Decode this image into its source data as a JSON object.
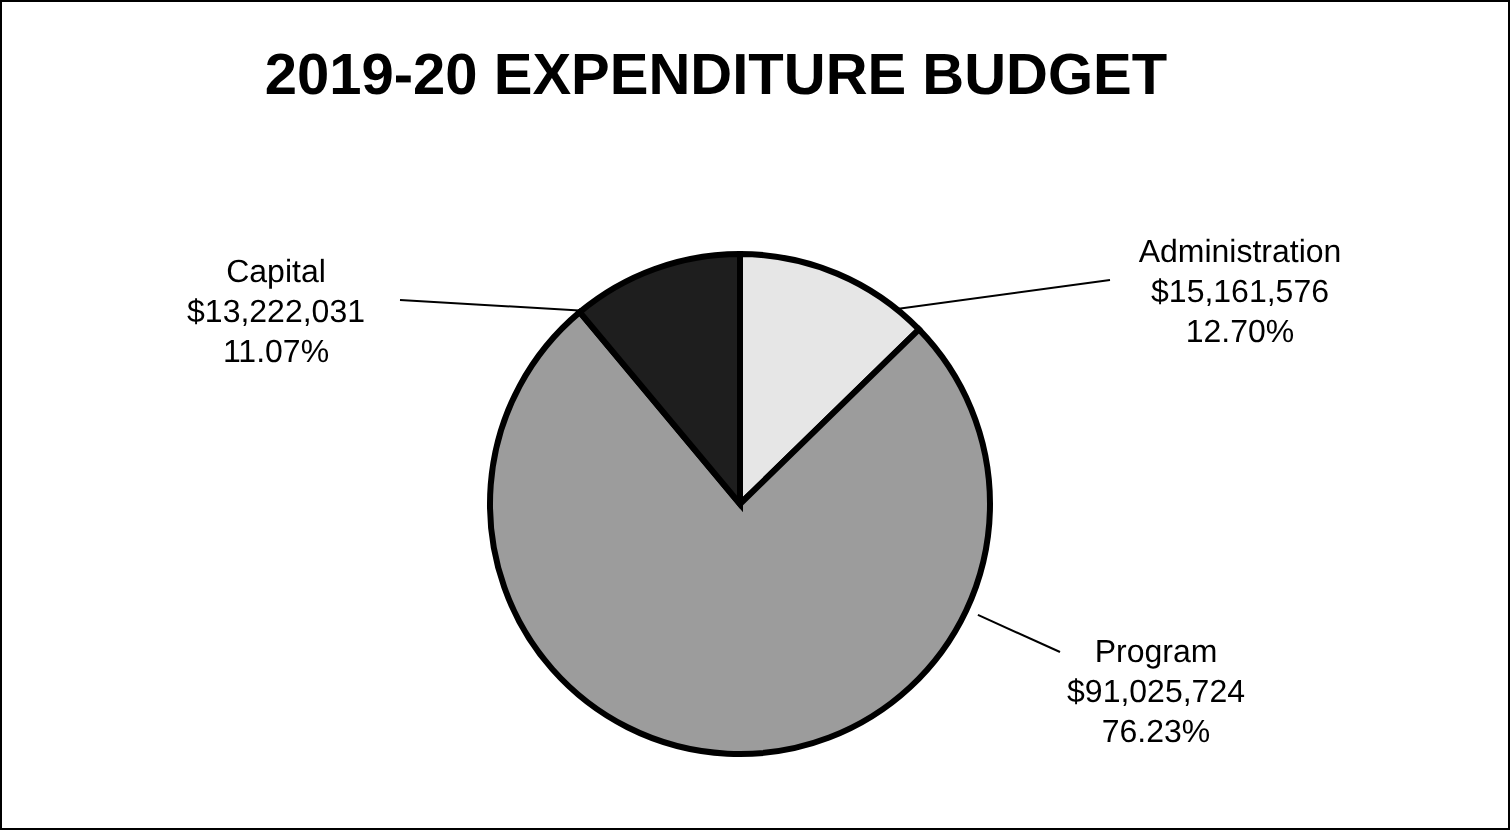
{
  "chart_data": {
    "type": "pie",
    "title": "2019-20 EXPENDITURE BUDGET",
    "categories": [
      "Administration",
      "Program",
      "Capital"
    ],
    "values": [
      15161576,
      91025724,
      13222031
    ],
    "value_labels": [
      "$15,161,576\n12.70%",
      "$91,025,724\n76.23%",
      "$13,222,031\n11.07%"
    ],
    "colors": [
      "#e6e6e6",
      "#9c9c9c",
      "#1e1e1e"
    ]
  }
}
